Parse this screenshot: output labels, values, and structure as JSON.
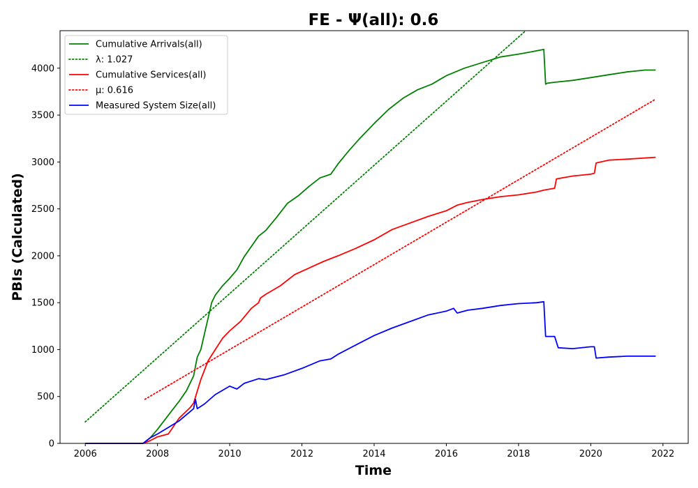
{
  "chart_data": {
    "type": "line",
    "title": "FE -  Ψ(all): 0.6",
    "xlabel": "Time",
    "ylabel": "PBIs (Calculated)",
    "xlim": [
      2005.3,
      2022.7
    ],
    "ylim": [
      0,
      4400
    ],
    "x_ticks": [
      2006,
      2008,
      2010,
      2012,
      2014,
      2016,
      2018,
      2020,
      2022
    ],
    "y_ticks": [
      0,
      500,
      1000,
      1500,
      2000,
      2500,
      3000,
      3500,
      4000
    ],
    "grid": false,
    "legend_position": "upper-left",
    "series": [
      {
        "name": "Cumulative Arrivals(all)",
        "color": "#008000",
        "style": "solid",
        "x": [
          2006.0,
          2007.6,
          2007.8,
          2008.0,
          2008.3,
          2008.6,
          2008.8,
          2009.0,
          2009.1,
          2009.2,
          2009.35,
          2009.5,
          2009.6,
          2009.8,
          2010.0,
          2010.2,
          2010.4,
          2010.6,
          2010.8,
          2011.0,
          2011.3,
          2011.6,
          2011.9,
          2012.2,
          2012.5,
          2012.8,
          2013.0,
          2013.3,
          2013.6,
          2014.0,
          2014.4,
          2014.8,
          2015.2,
          2015.6,
          2016.0,
          2016.5,
          2017.0,
          2017.5,
          2018.0,
          2018.3,
          2018.7,
          2018.75,
          2018.8,
          2019.0,
          2019.5,
          2020.0,
          2020.5,
          2021.0,
          2021.5,
          2021.8
        ],
        "values": [
          0,
          0,
          60,
          150,
          300,
          450,
          560,
          720,
          920,
          1000,
          1250,
          1500,
          1580,
          1680,
          1760,
          1850,
          1990,
          2100,
          2210,
          2270,
          2410,
          2560,
          2640,
          2740,
          2830,
          2870,
          2980,
          3120,
          3250,
          3410,
          3560,
          3680,
          3770,
          3830,
          3920,
          4000,
          4060,
          4120,
          4150,
          4170,
          4200,
          3830,
          3840,
          3850,
          3870,
          3900,
          3930,
          3960,
          3980,
          3980
        ]
      },
      {
        "name": "λ: 1.027",
        "color": "#008000",
        "style": "dotted",
        "x": [
          2006.0,
          2018.2
        ],
        "values": [
          230,
          4400
        ]
      },
      {
        "name": "Cumulative Services(all)",
        "color": "#ff0000",
        "style": "solid",
        "x": [
          2006.0,
          2007.6,
          2007.8,
          2008.0,
          2008.3,
          2008.6,
          2008.9,
          2009.0,
          2009.2,
          2009.4,
          2009.6,
          2009.8,
          2010.0,
          2010.3,
          2010.6,
          2010.8,
          2010.85,
          2011.0,
          2011.4,
          2011.8,
          2012.2,
          2012.6,
          2013.0,
          2013.5,
          2014.0,
          2014.5,
          2015.0,
          2015.5,
          2016.0,
          2016.3,
          2016.6,
          2017.0,
          2017.5,
          2018.0,
          2018.5,
          2018.7,
          2019.0,
          2019.05,
          2019.5,
          2020.0,
          2020.1,
          2020.15,
          2020.5,
          2021.0,
          2021.8
        ],
        "values": [
          0,
          0,
          30,
          70,
          100,
          270,
          380,
          430,
          680,
          880,
          1000,
          1120,
          1200,
          1300,
          1440,
          1500,
          1550,
          1590,
          1680,
          1800,
          1870,
          1940,
          2000,
          2080,
          2170,
          2280,
          2350,
          2420,
          2480,
          2540,
          2570,
          2600,
          2630,
          2650,
          2680,
          2700,
          2720,
          2820,
          2850,
          2870,
          2880,
          2990,
          3020,
          3030,
          3050
        ]
      },
      {
        "name": "μ: 0.616",
        "color": "#ff0000",
        "style": "dotted",
        "x": [
          2007.65,
          2021.8
        ],
        "values": [
          470,
          3670
        ]
      },
      {
        "name": "Measured System Size(all)",
        "color": "#0000ff",
        "style": "solid",
        "x": [
          2006.0,
          2007.6,
          2007.8,
          2008.0,
          2008.3,
          2008.6,
          2009.0,
          2009.05,
          2009.1,
          2009.3,
          2009.6,
          2010.0,
          2010.2,
          2010.4,
          2010.8,
          2011.0,
          2011.5,
          2012.0,
          2012.5,
          2012.8,
          2013.0,
          2013.5,
          2014.0,
          2014.5,
          2015.0,
          2015.5,
          2016.0,
          2016.2,
          2016.3,
          2016.6,
          2017.0,
          2017.5,
          2018.0,
          2018.5,
          2018.7,
          2018.75,
          2019.0,
          2019.1,
          2019.5,
          2020.0,
          2020.1,
          2020.15,
          2020.5,
          2021.0,
          2021.8
        ],
        "values": [
          0,
          0,
          60,
          100,
          170,
          240,
          370,
          470,
          370,
          420,
          520,
          610,
          580,
          640,
          690,
          680,
          730,
          800,
          880,
          900,
          950,
          1050,
          1150,
          1230,
          1300,
          1370,
          1410,
          1440,
          1390,
          1420,
          1440,
          1470,
          1490,
          1500,
          1510,
          1140,
          1140,
          1020,
          1010,
          1030,
          1030,
          910,
          920,
          930,
          930
        ]
      }
    ]
  }
}
